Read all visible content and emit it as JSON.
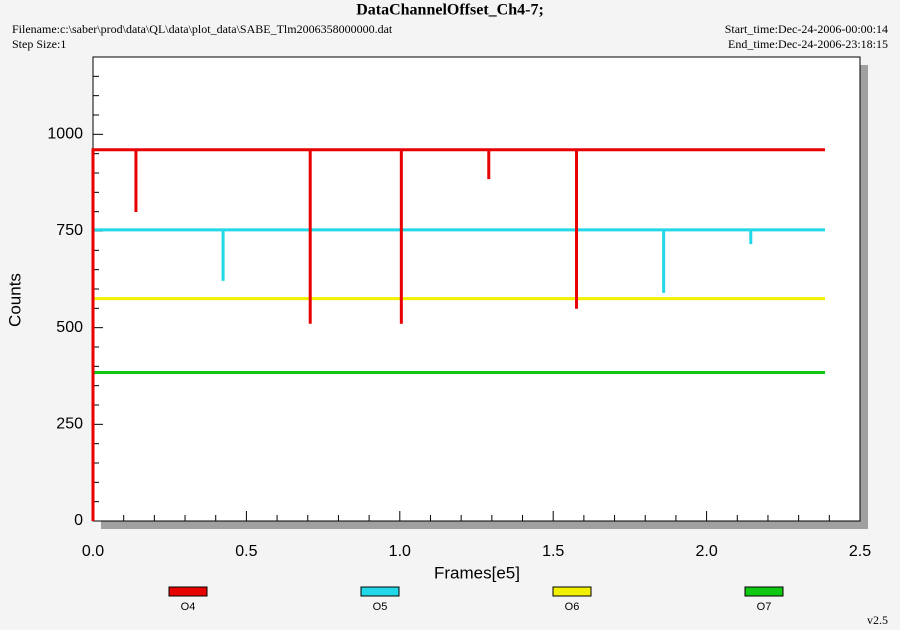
{
  "chart_data": {
    "type": "line",
    "title": "DataChannelOffset_Ch4-7;",
    "filename": "Filename:c:\\saber\\prod\\data\\QL\\data\\plot_data\\SABE_Tlm2006358000000.dat",
    "step_size": "Step Size:1",
    "start_time": "Start_time:Dec-24-2006-00:00:14",
    "end_time": "End_time:Dec-24-2006-23:18:15",
    "version": "v2.5",
    "x_label": "Frames[e5]",
    "y_label": "Counts",
    "xlim": [
      0,
      2.5
    ],
    "ylim": [
      0,
      1200
    ],
    "xticks": [
      {
        "value": 0,
        "label": "0.0"
      },
      0.5,
      {
        "value": 1,
        "label": "1.0"
      },
      1.5,
      {
        "value": 2,
        "label": "2.0"
      },
      2.5
    ],
    "yticks": [
      0,
      250,
      500,
      750,
      1000
    ],
    "xminorticks": [
      0.1,
      0.2,
      0.3,
      0.4,
      0.6,
      0.7,
      0.8,
      0.9,
      1.1,
      1.2,
      1.3,
      1.4,
      1.6,
      1.7,
      1.8,
      1.9,
      2.1,
      2.2,
      2.3,
      2.4
    ],
    "yminorticks": [
      50,
      100,
      150,
      200,
      300,
      350,
      400,
      450,
      550,
      600,
      650,
      700,
      800,
      850,
      900,
      950,
      1050,
      1100,
      1150
    ],
    "series": [
      {
        "name": "O4",
        "color": "#e80000",
        "x": [
          0,
          0,
          0.14,
          0.14,
          0.14,
          0.708,
          0.708,
          0.708,
          1.005,
          1.005,
          1.005,
          1.29,
          1.29,
          1.29,
          1.576,
          1.576,
          1.576,
          2.386
        ],
        "values": [
          0,
          960,
          960,
          799,
          960,
          960,
          510,
          960,
          960,
          510,
          960,
          960,
          884,
          960,
          960,
          549,
          960,
          960
        ]
      },
      {
        "name": "O5",
        "color": "#22d8e8",
        "x": [
          0,
          0,
          0.424,
          0.424,
          0.424,
          1.86,
          1.86,
          1.86,
          2.144,
          2.144,
          2.144,
          2.386
        ],
        "values": [
          0,
          753,
          753,
          621,
          753,
          753,
          590,
          753,
          753,
          716,
          753,
          753
        ]
      },
      {
        "name": "O6",
        "color": "#f0f000",
        "x": [
          0,
          0,
          2.386
        ],
        "values": [
          0,
          575,
          575
        ]
      },
      {
        "name": "O7",
        "color": "#10c810",
        "x": [
          0,
          0,
          2.386
        ],
        "values": [
          0,
          384,
          384
        ]
      }
    ]
  }
}
